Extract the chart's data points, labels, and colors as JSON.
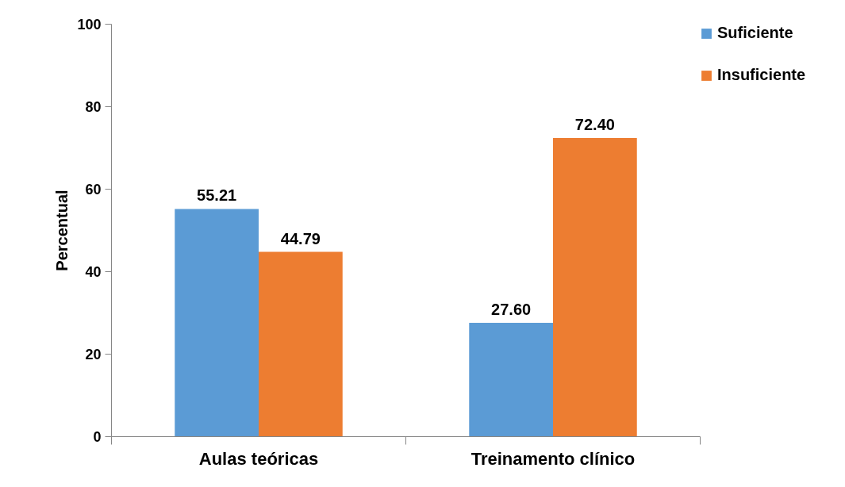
{
  "chart_data": {
    "type": "bar",
    "ylabel": "Percentual",
    "categories": [
      "Aulas teóricas",
      "Treinamento clínico"
    ],
    "series": [
      {
        "name": "Suficiente",
        "color": "#5b9bd5",
        "values": [
          55.21,
          27.6
        ],
        "value_labels": [
          "55.21",
          "27.60"
        ]
      },
      {
        "name": "Insuficiente",
        "color": "#ed7d31",
        "values": [
          44.79,
          72.4
        ],
        "value_labels": [
          "44.79",
          "72.40"
        ]
      }
    ],
    "ylim": [
      0,
      100
    ],
    "yticks": [
      0,
      20,
      40,
      60,
      80,
      100
    ],
    "grid": false,
    "legend": "top right"
  }
}
